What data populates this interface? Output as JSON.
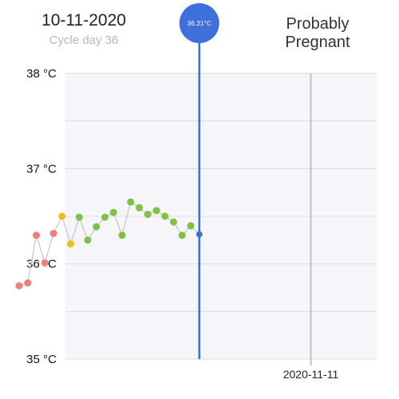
{
  "header": {
    "date": "10-11-2020",
    "cycle_day": "Cycle day 36",
    "status_line1": "Probably",
    "status_line2": "Pregnant"
  },
  "colors": {
    "period": "#f07f7f",
    "fertile": "#efbf17",
    "normal": "#7fc241",
    "cursor": "#3e6fdb",
    "connector": "#c9c9c9",
    "plot_bg": "#f6f6fa",
    "grid": "#d8d8e0"
  },
  "chart_data": {
    "type": "scatter",
    "y_unit": "°C",
    "ylim": [
      35,
      38
    ],
    "y_ticks": [
      {
        "value": 38,
        "label": "38 °C"
      },
      {
        "value": 37,
        "label": "37 °C"
      },
      {
        "value": 36,
        "label": "36 °C"
      },
      {
        "value": 35,
        "label": "35 °C"
      }
    ],
    "x_ticks": [
      {
        "date": "2020-11-11",
        "label": "2020-11-11"
      }
    ],
    "series": [
      {
        "values": [
          {
            "date": "2020-10-08",
            "temp": 35.77,
            "kind": "period"
          },
          {
            "date": "2020-10-09",
            "temp": 35.8,
            "kind": "period"
          },
          {
            "date": "2020-10-10",
            "temp": 36.3,
            "kind": "period"
          },
          {
            "date": "2020-10-11",
            "temp": 36.01,
            "kind": "period"
          },
          {
            "date": "2020-10-12",
            "temp": 36.32,
            "kind": "period"
          },
          {
            "date": "2020-10-13",
            "temp": 36.5,
            "kind": "fertile"
          },
          {
            "date": "2020-10-14",
            "temp": 36.21,
            "kind": "fertile"
          },
          {
            "date": "2020-10-15",
            "temp": 36.49,
            "kind": "normal"
          },
          {
            "date": "2020-10-16",
            "temp": 36.25,
            "kind": "normal"
          },
          {
            "date": "2020-10-17",
            "temp": 36.39,
            "kind": "normal"
          },
          {
            "date": "2020-10-18",
            "temp": 36.49,
            "kind": "normal"
          },
          {
            "date": "2020-10-19",
            "temp": 36.54,
            "kind": "normal"
          },
          {
            "date": "2020-10-20",
            "temp": 36.3,
            "kind": "normal"
          },
          {
            "date": "2020-10-21",
            "temp": 36.65,
            "kind": "normal"
          },
          {
            "date": "2020-10-22",
            "temp": 36.59,
            "kind": "normal"
          },
          {
            "date": "2020-10-23",
            "temp": 36.52,
            "kind": "normal"
          },
          {
            "date": "2020-10-24",
            "temp": 36.56,
            "kind": "normal"
          },
          {
            "date": "2020-10-25",
            "temp": 36.5,
            "kind": "normal"
          },
          {
            "date": "2020-10-26",
            "temp": 36.44,
            "kind": "normal"
          },
          {
            "date": "2020-10-27",
            "temp": 36.3,
            "kind": "normal"
          },
          {
            "date": "2020-10-28",
            "temp": 36.4,
            "kind": "normal"
          },
          {
            "date": "2020-10-29",
            "temp": 36.31,
            "kind": "selected"
          }
        ]
      }
    ],
    "selected": {
      "date": "2020-10-29",
      "temp": 36.31,
      "label": "36.31°C"
    }
  }
}
